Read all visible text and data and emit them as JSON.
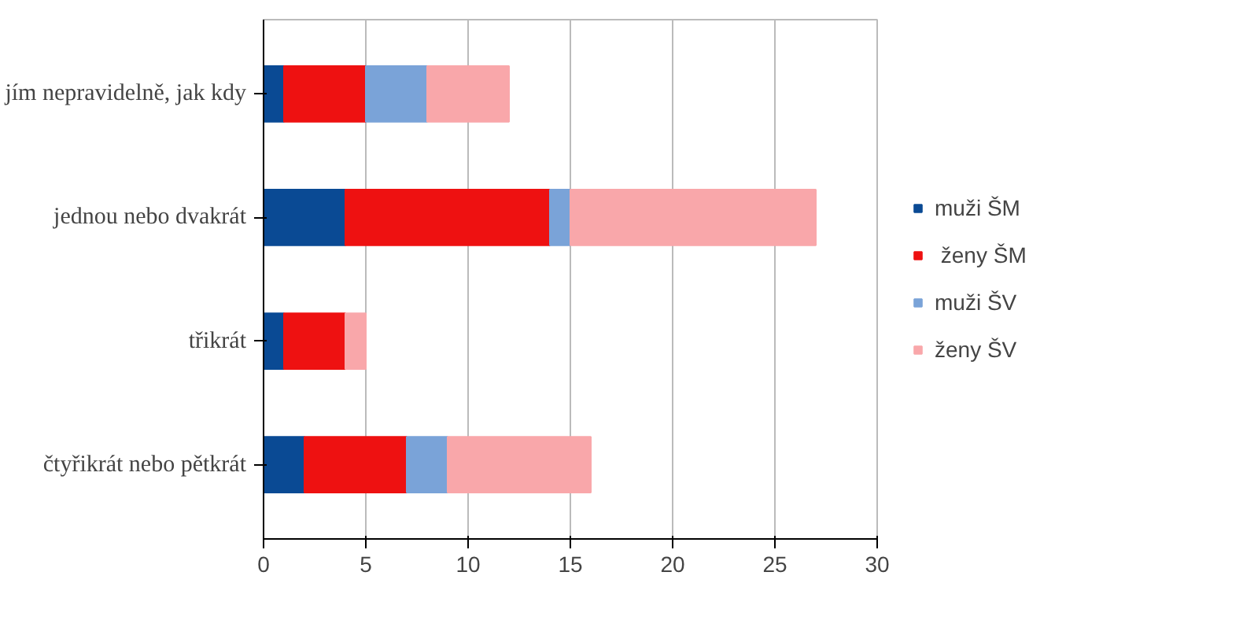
{
  "chart_data": {
    "type": "bar",
    "orientation": "horizontal",
    "stacked": true,
    "categories": [
      "jím nepravidelně, jak kdy",
      "jednou nebo dvakrát",
      "třikrát",
      "čtyřikrát nebo pětkrát"
    ],
    "series": [
      {
        "name": "muži ŠM",
        "color": "#0a4a94",
        "values": [
          1,
          4,
          1,
          2
        ]
      },
      {
        "name": " ženy ŠM",
        "color": "#ee1111",
        "values": [
          4,
          10,
          3,
          5
        ]
      },
      {
        "name": "muži ŠV",
        "color": "#7aa3d8",
        "values": [
          3,
          1,
          0,
          2
        ]
      },
      {
        "name": "ženy ŠV",
        "color": "#f9a7aa",
        "values": [
          4,
          12,
          1,
          7
        ]
      }
    ],
    "xlim": [
      0,
      30
    ],
    "xticks": [
      0,
      5,
      10,
      15,
      20,
      25,
      30
    ],
    "grid": "x",
    "legend": "right"
  }
}
